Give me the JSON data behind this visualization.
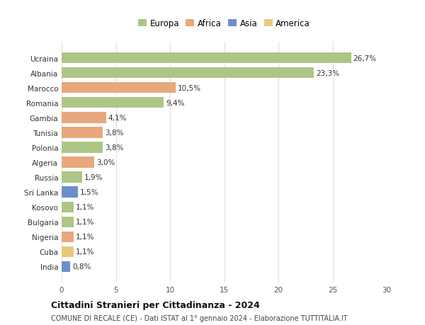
{
  "countries": [
    "India",
    "Cuba",
    "Nigeria",
    "Bulgaria",
    "Kosovo",
    "Sri Lanka",
    "Russia",
    "Algeria",
    "Polonia",
    "Tunisia",
    "Gambia",
    "Romania",
    "Marocco",
    "Albania",
    "Ucraina"
  ],
  "values": [
    0.8,
    1.1,
    1.1,
    1.1,
    1.1,
    1.5,
    1.9,
    3.0,
    3.8,
    3.8,
    4.1,
    9.4,
    10.5,
    23.3,
    26.7
  ],
  "labels": [
    "0,8%",
    "1,1%",
    "1,1%",
    "1,1%",
    "1,1%",
    "1,5%",
    "1,9%",
    "3,0%",
    "3,8%",
    "3,8%",
    "4,1%",
    "9,4%",
    "10,5%",
    "23,3%",
    "26,7%"
  ],
  "continents": [
    "Asia",
    "America",
    "Africa",
    "Europa",
    "Europa",
    "Asia",
    "Europa",
    "Africa",
    "Europa",
    "Africa",
    "Africa",
    "Europa",
    "Africa",
    "Europa",
    "Europa"
  ],
  "colors": {
    "Europa": "#adc686",
    "Africa": "#e8a87c",
    "Asia": "#6b8fc9",
    "America": "#e8c97c"
  },
  "legend_labels": [
    "Europa",
    "Africa",
    "Asia",
    "America"
  ],
  "legend_colors": [
    "#adc686",
    "#e8a87c",
    "#6b8fc9",
    "#e8c97c"
  ],
  "title": "Cittadini Stranieri per Cittadinanza - 2024",
  "subtitle": "COMUNE DI RECALE (CE) - Dati ISTAT al 1° gennaio 2024 - Elaborazione TUTTITALIA.IT",
  "xlim": [
    0,
    30
  ],
  "xticks": [
    0,
    5,
    10,
    15,
    20,
    25,
    30
  ],
  "bg_color": "#ffffff",
  "grid_color": "#e0e0e0"
}
